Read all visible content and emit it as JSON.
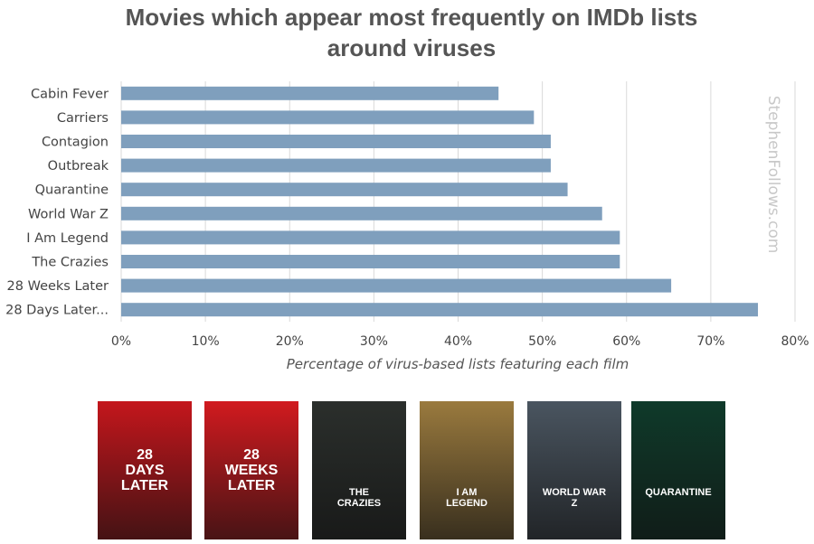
{
  "chart_data": {
    "type": "bar",
    "orientation": "horizontal",
    "title": "Movies which appear most frequently on IMDb lists around viruses",
    "title_lines": [
      "Movies which appear most frequently on IMDb lists",
      "around viruses"
    ],
    "categories": [
      "Cabin Fever",
      "Carriers",
      "Contagion",
      "Outbreak",
      "Quarantine",
      "World War Z",
      "I Am Legend",
      "The Crazies",
      "28 Weeks Later",
      "28 Days Later..."
    ],
    "values": [
      44.8,
      49.0,
      51.0,
      51.0,
      53.0,
      57.1,
      59.2,
      59.2,
      65.3,
      75.6
    ],
    "xlabel": "Percentage of virus-based lists featuring each film",
    "ylabel": "",
    "xlim": [
      0,
      80
    ],
    "xticks": [
      "0%",
      "10%",
      "20%",
      "30%",
      "40%",
      "50%",
      "60%",
      "70%",
      "80%"
    ],
    "grid": true,
    "bar_color": "#7f9fbd",
    "watermark": "StephenFollows.com"
  },
  "posters": [
    {
      "name": "28-days-later",
      "title_lines": [
        "28",
        "DAYS",
        "LATER"
      ],
      "bg": "#c4161c"
    },
    {
      "name": "28-weeks-later",
      "title_lines": [
        "28",
        "WEEKS",
        "LATER"
      ],
      "bg": "#d11a1f"
    },
    {
      "name": "the-crazies",
      "title_lines": [
        "THE",
        "CRAZIES"
      ],
      "bg": "#2b2f2c"
    },
    {
      "name": "i-am-legend",
      "title_lines": [
        "I AM",
        "LEGEND"
      ],
      "bg": "#9a7a3e"
    },
    {
      "name": "world-war-z",
      "title_lines": [
        "WORLD WAR",
        "Z"
      ],
      "bg": "#4a5560"
    },
    {
      "name": "quarantine",
      "title_lines": [
        "QUARANTINE"
      ],
      "bg": "#0f3a2a"
    }
  ]
}
